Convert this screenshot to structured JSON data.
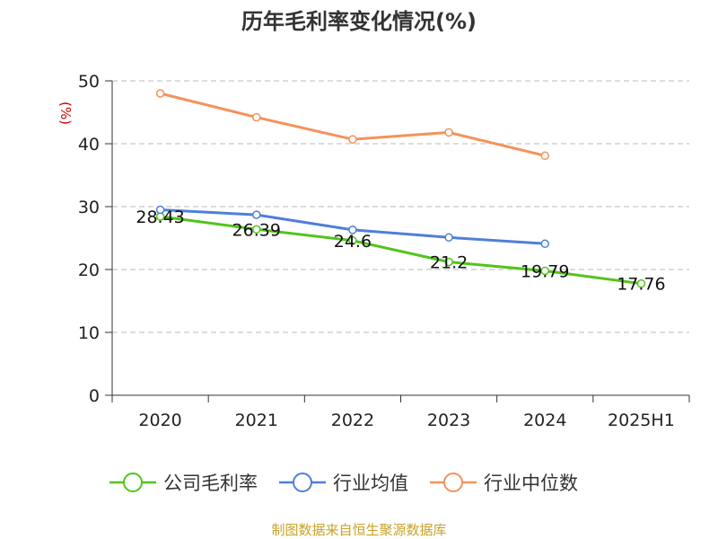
{
  "chart_data": {
    "type": "line",
    "title": "历年毛利率变化情况(%)",
    "ylabel": "(%)",
    "categories": [
      "2020",
      "2021",
      "2022",
      "2023",
      "2024",
      "2025H1"
    ],
    "ylim": [
      0,
      50
    ],
    "yticks": [
      "0",
      "10",
      "20",
      "30",
      "40",
      "50"
    ],
    "grid": true,
    "legend_position": "bottom",
    "series": [
      {
        "name": "公司毛利率",
        "color": "#52c41a",
        "values": [
          28.43,
          26.39,
          24.6,
          21.2,
          19.79,
          17.76
        ],
        "labels": [
          "28.43",
          "26.39",
          "24.6",
          "21.2",
          "19.79",
          "17.76"
        ]
      },
      {
        "name": "行业均值",
        "color": "#4f7fd8",
        "values": [
          29.5,
          28.7,
          26.3,
          25.1,
          24.1,
          null
        ]
      },
      {
        "name": "行业中位数",
        "color": "#f4925a",
        "values": [
          48.0,
          44.2,
          40.7,
          41.8,
          38.1,
          null
        ]
      }
    ]
  },
  "source": "制图数据来自恒生聚源数据库"
}
